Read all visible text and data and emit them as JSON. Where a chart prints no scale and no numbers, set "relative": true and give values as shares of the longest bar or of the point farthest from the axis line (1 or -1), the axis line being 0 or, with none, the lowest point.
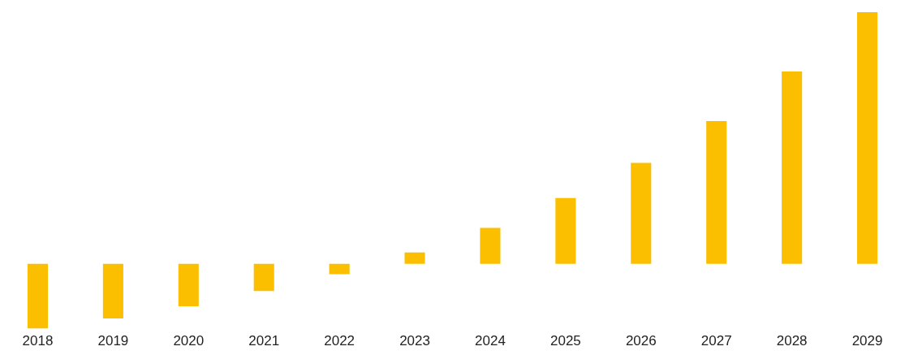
{
  "chart_data": {
    "type": "bar",
    "relative": true,
    "categories": [
      "2018",
      "2019",
      "2020",
      "2021",
      "2022",
      "2023",
      "2024",
      "2025",
      "2026",
      "2027",
      "2028",
      "2029"
    ],
    "values": [
      -0.258,
      -0.217,
      -0.169,
      -0.108,
      -0.041,
      0.045,
      0.143,
      0.261,
      0.401,
      0.567,
      0.764,
      1
    ],
    "color": "#fbbf00",
    "grid": false,
    "legend": false
  }
}
